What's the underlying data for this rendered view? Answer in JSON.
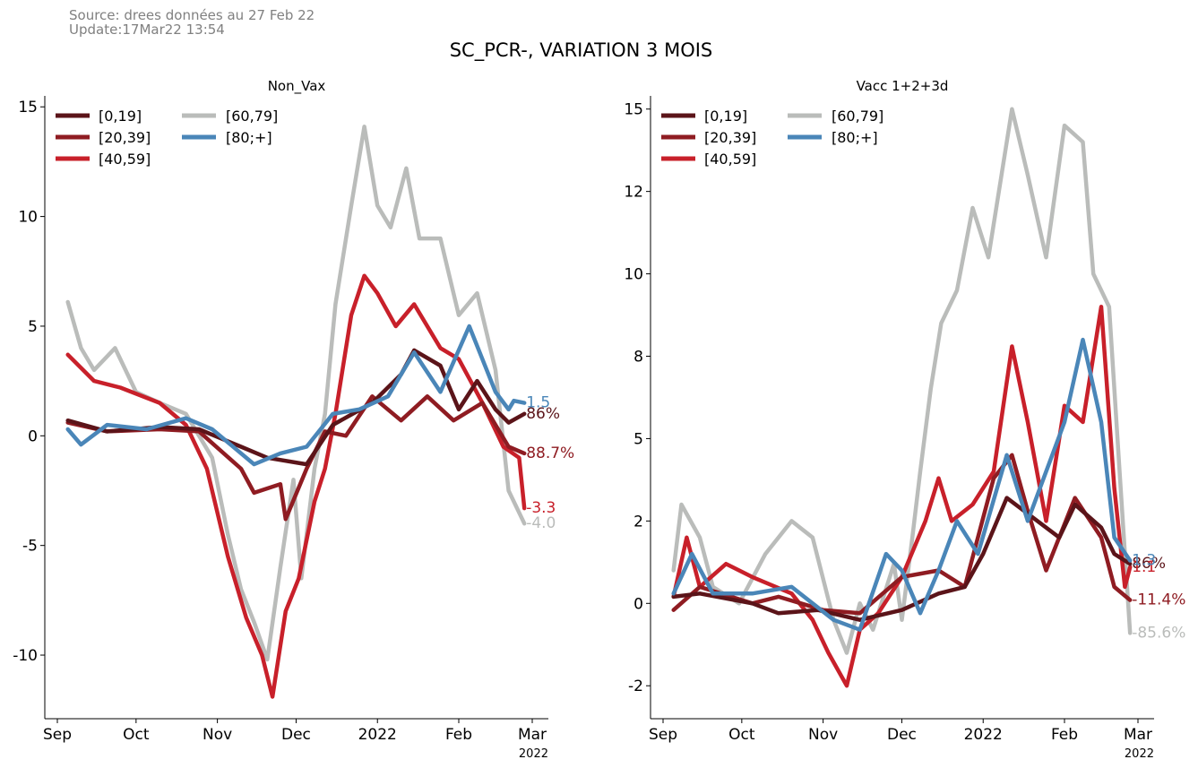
{
  "header": {
    "source": "Source: drees données au 27 Feb 22",
    "update": "Update:17Mar22 13:54",
    "title": "SC_PCR-, VARIATION 3 MOIS"
  },
  "chart_data": [
    {
      "type": "line",
      "title": "Non_Vax",
      "x_ticks": [
        "Sep",
        "Oct",
        "Nov",
        "Dec",
        "2022",
        "Feb",
        "Mar"
      ],
      "x_year_label": "2022",
      "x_range": [
        "2021-09-01",
        "2022-03-01"
      ],
      "y_ticks": [
        15,
        10,
        5,
        0,
        -5,
        -10
      ],
      "y_tick_labels": [
        "15",
        "10",
        "5",
        "0",
        "-5",
        "-10"
      ],
      "ylim": [
        -12.9,
        15.5
      ],
      "grid": false,
      "legend": "top-left",
      "series": [
        {
          "name": "[0,19]",
          "color": "#5b1419",
          "end_label": "86%",
          "points": [
            [
              "2021-09-05",
              0.7
            ],
            [
              "2021-09-20",
              0.2
            ],
            [
              "2021-10-10",
              0.4
            ],
            [
              "2021-10-25",
              0.3
            ],
            [
              "2021-11-10",
              -0.5
            ],
            [
              "2021-11-20",
              -1.0
            ],
            [
              "2021-12-05",
              -1.3
            ],
            [
              "2021-12-15",
              0.5
            ],
            [
              "2021-12-30",
              1.5
            ],
            [
              "2022-01-10",
              2.8
            ],
            [
              "2022-01-15",
              3.9
            ],
            [
              "2022-01-25",
              3.2
            ],
            [
              "2022-02-01",
              1.2
            ],
            [
              "2022-02-08",
              2.5
            ],
            [
              "2022-02-15",
              1.2
            ],
            [
              "2022-02-20",
              0.6
            ],
            [
              "2022-02-26",
              1.0
            ]
          ]
        },
        {
          "name": "[20,39]",
          "color": "#8f1c22",
          "end_label": "88.7%",
          "points": [
            [
              "2021-09-05",
              0.6
            ],
            [
              "2021-09-20",
              0.2
            ],
            [
              "2021-10-10",
              0.3
            ],
            [
              "2021-10-25",
              0.2
            ],
            [
              "2021-11-10",
              -1.5
            ],
            [
              "2021-11-15",
              -2.6
            ],
            [
              "2021-11-25",
              -2.2
            ],
            [
              "2021-11-27",
              -3.8
            ],
            [
              "2021-12-05",
              -1.5
            ],
            [
              "2021-12-12",
              0.2
            ],
            [
              "2021-12-20",
              0.0
            ],
            [
              "2021-12-30",
              1.8
            ],
            [
              "2022-01-10",
              0.7
            ],
            [
              "2022-01-20",
              1.8
            ],
            [
              "2022-01-30",
              0.7
            ],
            [
              "2022-02-10",
              1.5
            ],
            [
              "2022-02-20",
              -0.5
            ],
            [
              "2022-02-26",
              -0.8
            ]
          ]
        },
        {
          "name": "[40,59]",
          "color": "#c8202a",
          "end_label": "-3.3",
          "points": [
            [
              "2021-09-05",
              3.7
            ],
            [
              "2021-09-15",
              2.5
            ],
            [
              "2021-09-25",
              2.2
            ],
            [
              "2021-10-10",
              1.5
            ],
            [
              "2021-10-20",
              0.5
            ],
            [
              "2021-10-28",
              -1.5
            ],
            [
              "2021-11-05",
              -5.5
            ],
            [
              "2021-11-12",
              -8.3
            ],
            [
              "2021-11-18",
              -10.0
            ],
            [
              "2021-11-22",
              -11.9
            ],
            [
              "2021-11-27",
              -8.0
            ],
            [
              "2021-12-02",
              -6.5
            ],
            [
              "2021-12-08",
              -3.0
            ],
            [
              "2021-12-12",
              -1.5
            ],
            [
              "2021-12-16",
              1.0
            ],
            [
              "2021-12-22",
              5.5
            ],
            [
              "2021-12-27",
              7.3
            ],
            [
              "2022-01-01",
              6.5
            ],
            [
              "2022-01-08",
              5.0
            ],
            [
              "2022-01-15",
              6.0
            ],
            [
              "2022-01-25",
              4.0
            ],
            [
              "2022-02-01",
              3.5
            ],
            [
              "2022-02-10",
              1.5
            ],
            [
              "2022-02-18",
              -0.5
            ],
            [
              "2022-02-24",
              -1.0
            ],
            [
              "2022-02-26",
              -3.3
            ]
          ]
        },
        {
          "name": "[60,79]",
          "color": "#babcba",
          "end_label": "-4.0",
          "points": [
            [
              "2021-09-05",
              6.1
            ],
            [
              "2021-09-10",
              4.0
            ],
            [
              "2021-09-15",
              3.0
            ],
            [
              "2021-09-23",
              4.0
            ],
            [
              "2021-10-01",
              2.0
            ],
            [
              "2021-10-10",
              1.5
            ],
            [
              "2021-10-20",
              1.0
            ],
            [
              "2021-10-30",
              -1.0
            ],
            [
              "2021-11-05",
              -4.5
            ],
            [
              "2021-11-10",
              -7.0
            ],
            [
              "2021-11-15",
              -8.5
            ],
            [
              "2021-11-20",
              -10.2
            ],
            [
              "2021-11-25",
              -6.0
            ],
            [
              "2021-11-30",
              -2.0
            ],
            [
              "2021-12-03",
              -6.5
            ],
            [
              "2021-12-08",
              -1.5
            ],
            [
              "2021-12-12",
              1.0
            ],
            [
              "2021-12-16",
              6.0
            ],
            [
              "2021-12-22",
              10.5
            ],
            [
              "2021-12-27",
              14.1
            ],
            [
              "2022-01-01",
              10.5
            ],
            [
              "2022-01-06",
              9.5
            ],
            [
              "2022-01-12",
              12.2
            ],
            [
              "2022-01-17",
              9.0
            ],
            [
              "2022-01-25",
              9.0
            ],
            [
              "2022-02-01",
              5.5
            ],
            [
              "2022-02-08",
              6.5
            ],
            [
              "2022-02-15",
              3.0
            ],
            [
              "2022-02-20",
              -2.5
            ],
            [
              "2022-02-26",
              -4.0
            ]
          ]
        },
        {
          "name": "[80;+]",
          "color": "#4a86b8",
          "end_label": "1.5",
          "points": [
            [
              "2021-09-05",
              0.3
            ],
            [
              "2021-09-10",
              -0.4
            ],
            [
              "2021-09-20",
              0.5
            ],
            [
              "2021-10-05",
              0.3
            ],
            [
              "2021-10-20",
              0.8
            ],
            [
              "2021-10-30",
              0.3
            ],
            [
              "2021-11-15",
              -1.3
            ],
            [
              "2021-11-25",
              -0.8
            ],
            [
              "2021-12-05",
              -0.5
            ],
            [
              "2021-12-15",
              1.0
            ],
            [
              "2021-12-25",
              1.2
            ],
            [
              "2022-01-05",
              1.8
            ],
            [
              "2022-01-15",
              3.8
            ],
            [
              "2022-01-25",
              2.0
            ],
            [
              "2022-02-05",
              5.0
            ],
            [
              "2022-02-15",
              2.0
            ],
            [
              "2022-02-20",
              1.2
            ],
            [
              "2022-02-22",
              1.6
            ],
            [
              "2022-02-26",
              1.5
            ]
          ]
        }
      ]
    },
    {
      "type": "line",
      "title": "Vacc 1+2+3d",
      "x_ticks": [
        "Sep",
        "Oct",
        "Nov",
        "Dec",
        "2022",
        "Feb",
        "Mar"
      ],
      "x_year_label": "2022",
      "x_range": [
        "2021-09-01",
        "2022-03-01"
      ],
      "y_ticks": [
        15,
        12.5,
        10,
        7.5,
        5,
        2.5,
        0,
        -2.5
      ],
      "y_tick_labels": [
        "15",
        "12",
        "10",
        "8",
        "5",
        "2",
        "0",
        "-2"
      ],
      "ylim": [
        -3.5,
        15.4
      ],
      "grid": false,
      "legend": "top-left",
      "series": [
        {
          "name": "[0,19]",
          "color": "#5b1419",
          "end_label": "86%",
          "points": [
            [
              "2021-09-05",
              0.2
            ],
            [
              "2021-09-15",
              0.3
            ],
            [
              "2021-10-05",
              0.0
            ],
            [
              "2021-10-15",
              -0.3
            ],
            [
              "2021-10-30",
              -0.2
            ],
            [
              "2021-11-15",
              -0.5
            ],
            [
              "2021-12-01",
              -0.2
            ],
            [
              "2021-12-15",
              0.3
            ],
            [
              "2021-12-25",
              0.5
            ],
            [
              "2022-01-01",
              1.5
            ],
            [
              "2022-01-10",
              3.2
            ],
            [
              "2022-01-20",
              2.6
            ],
            [
              "2022-01-30",
              2.0
            ],
            [
              "2022-02-05",
              3.0
            ],
            [
              "2022-02-15",
              2.3
            ],
            [
              "2022-02-20",
              1.5
            ],
            [
              "2022-02-26",
              1.2
            ]
          ]
        },
        {
          "name": "[20,39]",
          "color": "#8f1c22",
          "end_label": "-11.4%",
          "points": [
            [
              "2021-09-05",
              -0.2
            ],
            [
              "2021-09-15",
              0.5
            ],
            [
              "2021-10-05",
              0.0
            ],
            [
              "2021-10-15",
              0.2
            ],
            [
              "2021-11-01",
              -0.2
            ],
            [
              "2021-11-15",
              -0.3
            ],
            [
              "2021-12-01",
              0.8
            ],
            [
              "2021-12-15",
              1.0
            ],
            [
              "2021-12-25",
              0.5
            ],
            [
              "2022-01-05",
              3.8
            ],
            [
              "2022-01-12",
              4.5
            ],
            [
              "2022-01-18",
              2.8
            ],
            [
              "2022-01-25",
              1.0
            ],
            [
              "2022-02-05",
              3.2
            ],
            [
              "2022-02-15",
              2.0
            ],
            [
              "2022-02-20",
              0.5
            ],
            [
              "2022-02-26",
              0.1
            ]
          ]
        },
        {
          "name": "[40,59]",
          "color": "#c8202a",
          "end_label": "1.1",
          "points": [
            [
              "2021-09-05",
              0.2
            ],
            [
              "2021-09-10",
              2.0
            ],
            [
              "2021-09-15",
              0.5
            ],
            [
              "2021-09-25",
              1.2
            ],
            [
              "2021-10-05",
              0.8
            ],
            [
              "2021-10-20",
              0.3
            ],
            [
              "2021-10-28",
              -0.5
            ],
            [
              "2021-11-03",
              -1.5
            ],
            [
              "2021-11-10",
              -2.5
            ],
            [
              "2021-11-15",
              -0.8
            ],
            [
              "2021-11-22",
              -0.3
            ],
            [
              "2021-12-01",
              0.8
            ],
            [
              "2021-12-10",
              2.5
            ],
            [
              "2021-12-15",
              3.8
            ],
            [
              "2021-12-20",
              2.5
            ],
            [
              "2021-12-28",
              3.0
            ],
            [
              "2022-01-05",
              4.0
            ],
            [
              "2022-01-12",
              7.8
            ],
            [
              "2022-01-18",
              5.5
            ],
            [
              "2022-01-25",
              2.5
            ],
            [
              "2022-02-01",
              6.0
            ],
            [
              "2022-02-08",
              5.5
            ],
            [
              "2022-02-15",
              9.0
            ],
            [
              "2022-02-20",
              3.5
            ],
            [
              "2022-02-24",
              0.5
            ],
            [
              "2022-02-26",
              1.1
            ]
          ]
        },
        {
          "name": "[60,79]",
          "color": "#babcba",
          "end_label": "-85.6%",
          "points": [
            [
              "2021-09-05",
              1.0
            ],
            [
              "2021-09-08",
              3.0
            ],
            [
              "2021-09-15",
              2.0
            ],
            [
              "2021-09-20",
              0.5
            ],
            [
              "2021-09-30",
              0.0
            ],
            [
              "2021-10-10",
              1.5
            ],
            [
              "2021-10-20",
              2.5
            ],
            [
              "2021-10-28",
              2.0
            ],
            [
              "2021-11-05",
              -0.5
            ],
            [
              "2021-11-10",
              -1.5
            ],
            [
              "2021-11-15",
              0.0
            ],
            [
              "2021-11-20",
              -0.8
            ],
            [
              "2021-11-28",
              1.2
            ],
            [
              "2021-12-01",
              -0.5
            ],
            [
              "2021-12-05",
              2.0
            ],
            [
              "2021-12-08",
              4.0
            ],
            [
              "2021-12-12",
              6.5
            ],
            [
              "2021-12-16",
              8.5
            ],
            [
              "2021-12-22",
              9.5
            ],
            [
              "2021-12-28",
              12.0
            ],
            [
              "2022-01-03",
              10.5
            ],
            [
              "2022-01-08",
              13.0
            ],
            [
              "2022-01-12",
              15.0
            ],
            [
              "2022-01-18",
              13.0
            ],
            [
              "2022-01-25",
              10.5
            ],
            [
              "2022-02-01",
              14.5
            ],
            [
              "2022-02-08",
              14.0
            ],
            [
              "2022-02-12",
              10.0
            ],
            [
              "2022-02-18",
              9.0
            ],
            [
              "2022-02-22",
              4.0
            ],
            [
              "2022-02-26",
              -0.9
            ]
          ]
        },
        {
          "name": "[80;+]",
          "color": "#4a86b8",
          "end_label": "1.3",
          "points": [
            [
              "2021-09-05",
              0.3
            ],
            [
              "2021-09-12",
              1.5
            ],
            [
              "2021-09-20",
              0.3
            ],
            [
              "2021-10-05",
              0.3
            ],
            [
              "2021-10-20",
              0.5
            ],
            [
              "2021-11-05",
              -0.5
            ],
            [
              "2021-11-15",
              -0.8
            ],
            [
              "2021-11-25",
              1.5
            ],
            [
              "2021-12-01",
              1.0
            ],
            [
              "2021-12-08",
              -0.3
            ],
            [
              "2021-12-15",
              1.0
            ],
            [
              "2021-12-22",
              2.5
            ],
            [
              "2021-12-30",
              1.5
            ],
            [
              "2022-01-10",
              4.5
            ],
            [
              "2022-01-18",
              2.5
            ],
            [
              "2022-01-25",
              4.0
            ],
            [
              "2022-02-01",
              5.5
            ],
            [
              "2022-02-08",
              8.0
            ],
            [
              "2022-02-15",
              5.5
            ],
            [
              "2022-02-20",
              2.0
            ],
            [
              "2022-02-26",
              1.3
            ]
          ]
        }
      ]
    }
  ]
}
